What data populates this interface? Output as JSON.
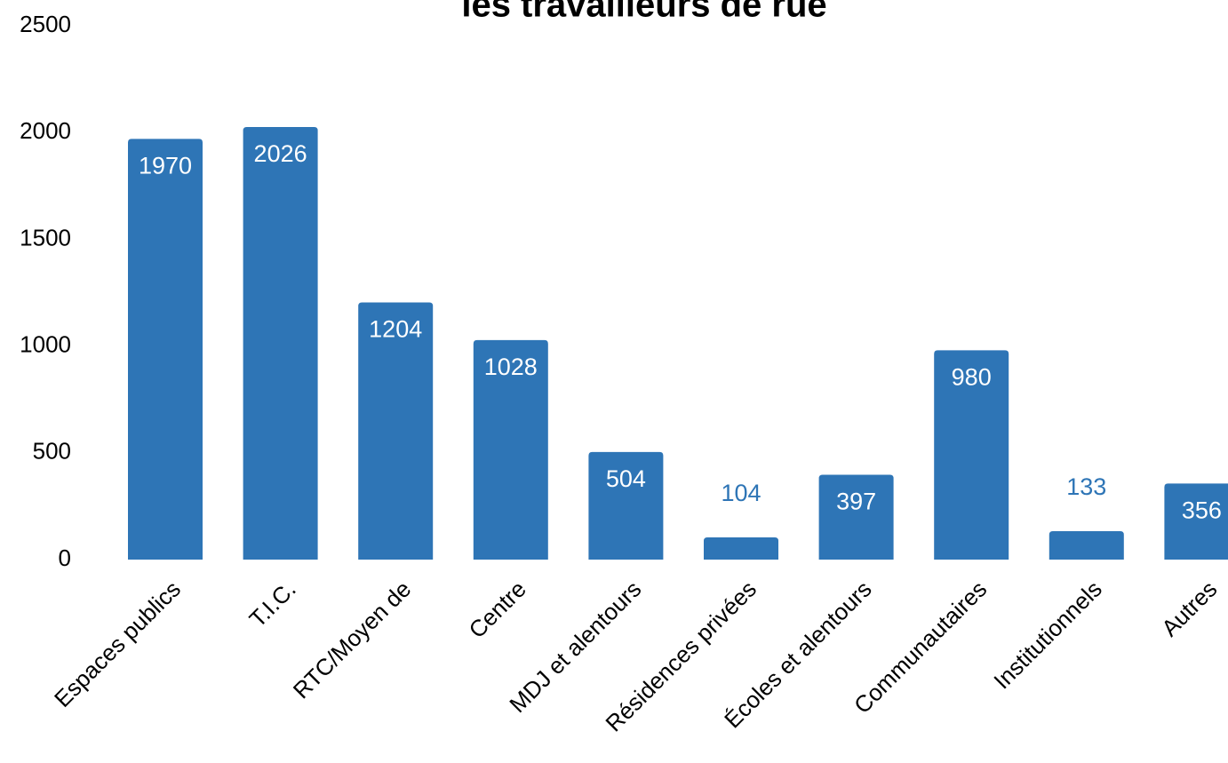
{
  "chart_data": {
    "type": "bar",
    "title": "les travailleurs de rue",
    "categories": [
      "Espaces publics",
      "T.I.C.",
      "RTC/Moyen de",
      "Centre",
      "MDJ et alentours",
      "Résidences privées",
      "Écoles et alentours",
      "Communautaires",
      "Institutionnels",
      "Autres"
    ],
    "values": [
      1970,
      2026,
      1204,
      1028,
      504,
      104,
      397,
      980,
      133,
      356
    ],
    "color": "#2e75b6",
    "ylim": [
      0,
      2500
    ],
    "yticks": [
      0,
      500,
      1000,
      1500,
      2000,
      2500
    ],
    "grid": false
  }
}
